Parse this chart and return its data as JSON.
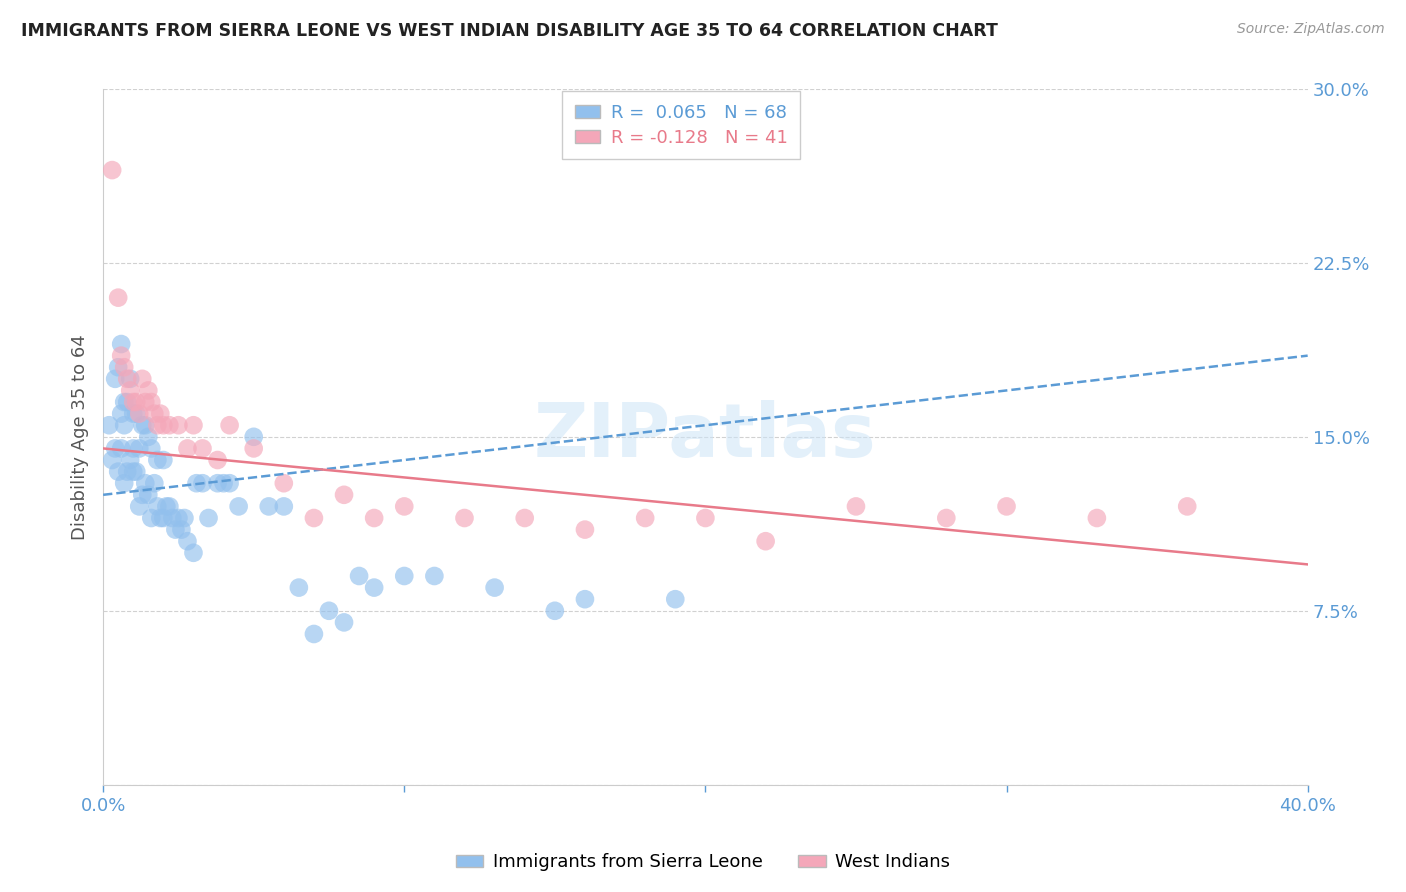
{
  "title": "IMMIGRANTS FROM SIERRA LEONE VS WEST INDIAN DISABILITY AGE 35 TO 64 CORRELATION CHART",
  "source": "Source: ZipAtlas.com",
  "ylabel": "Disability Age 35 to 64",
  "xlim": [
    0.0,
    0.4
  ],
  "ylim": [
    0.0,
    0.3
  ],
  "watermark": "ZIPatlas",
  "legend_blue_label": "Immigrants from Sierra Leone",
  "legend_pink_label": "West Indians",
  "R_blue": 0.065,
  "N_blue": 68,
  "R_pink": -0.128,
  "N_pink": 41,
  "blue_color": "#92c0ed",
  "pink_color": "#f4a7b9",
  "blue_line_color": "#5b9bd5",
  "pink_line_color": "#e87a8a",
  "axis_color": "#5b9bd5",
  "grid_color": "#cccccc",
  "blue_scatter_x": [
    0.002,
    0.003,
    0.004,
    0.004,
    0.005,
    0.005,
    0.006,
    0.006,
    0.006,
    0.007,
    0.007,
    0.007,
    0.008,
    0.008,
    0.009,
    0.009,
    0.01,
    0.01,
    0.01,
    0.011,
    0.011,
    0.012,
    0.012,
    0.013,
    0.013,
    0.014,
    0.014,
    0.015,
    0.015,
    0.016,
    0.016,
    0.017,
    0.018,
    0.018,
    0.019,
    0.02,
    0.02,
    0.021,
    0.022,
    0.023,
    0.024,
    0.025,
    0.026,
    0.027,
    0.028,
    0.03,
    0.031,
    0.033,
    0.035,
    0.038,
    0.04,
    0.042,
    0.045,
    0.05,
    0.055,
    0.06,
    0.065,
    0.07,
    0.075,
    0.08,
    0.085,
    0.09,
    0.1,
    0.11,
    0.13,
    0.15,
    0.16,
    0.19
  ],
  "blue_scatter_y": [
    0.155,
    0.14,
    0.145,
    0.175,
    0.135,
    0.18,
    0.145,
    0.16,
    0.19,
    0.13,
    0.155,
    0.165,
    0.135,
    0.165,
    0.14,
    0.175,
    0.135,
    0.145,
    0.16,
    0.135,
    0.16,
    0.12,
    0.145,
    0.125,
    0.155,
    0.13,
    0.155,
    0.125,
    0.15,
    0.115,
    0.145,
    0.13,
    0.12,
    0.14,
    0.115,
    0.115,
    0.14,
    0.12,
    0.12,
    0.115,
    0.11,
    0.115,
    0.11,
    0.115,
    0.105,
    0.1,
    0.13,
    0.13,
    0.115,
    0.13,
    0.13,
    0.13,
    0.12,
    0.15,
    0.12,
    0.12,
    0.085,
    0.065,
    0.075,
    0.07,
    0.09,
    0.085,
    0.09,
    0.09,
    0.085,
    0.075,
    0.08,
    0.08
  ],
  "pink_scatter_x": [
    0.003,
    0.005,
    0.006,
    0.007,
    0.008,
    0.009,
    0.01,
    0.011,
    0.012,
    0.013,
    0.014,
    0.015,
    0.016,
    0.017,
    0.018,
    0.019,
    0.02,
    0.022,
    0.025,
    0.028,
    0.03,
    0.033,
    0.038,
    0.042,
    0.05,
    0.06,
    0.07,
    0.08,
    0.09,
    0.1,
    0.12,
    0.14,
    0.16,
    0.18,
    0.2,
    0.22,
    0.25,
    0.28,
    0.3,
    0.33,
    0.36
  ],
  "pink_scatter_y": [
    0.265,
    0.21,
    0.185,
    0.18,
    0.175,
    0.17,
    0.165,
    0.165,
    0.16,
    0.175,
    0.165,
    0.17,
    0.165,
    0.16,
    0.155,
    0.16,
    0.155,
    0.155,
    0.155,
    0.145,
    0.155,
    0.145,
    0.14,
    0.155,
    0.145,
    0.13,
    0.115,
    0.125,
    0.115,
    0.12,
    0.115,
    0.115,
    0.11,
    0.115,
    0.115,
    0.105,
    0.12,
    0.115,
    0.12,
    0.115,
    0.12
  ],
  "blue_line_x0": 0.0,
  "blue_line_y0": 0.125,
  "blue_line_x1": 0.4,
  "blue_line_y1": 0.185,
  "pink_line_x0": 0.0,
  "pink_line_y0": 0.145,
  "pink_line_x1": 0.4,
  "pink_line_y1": 0.095
}
